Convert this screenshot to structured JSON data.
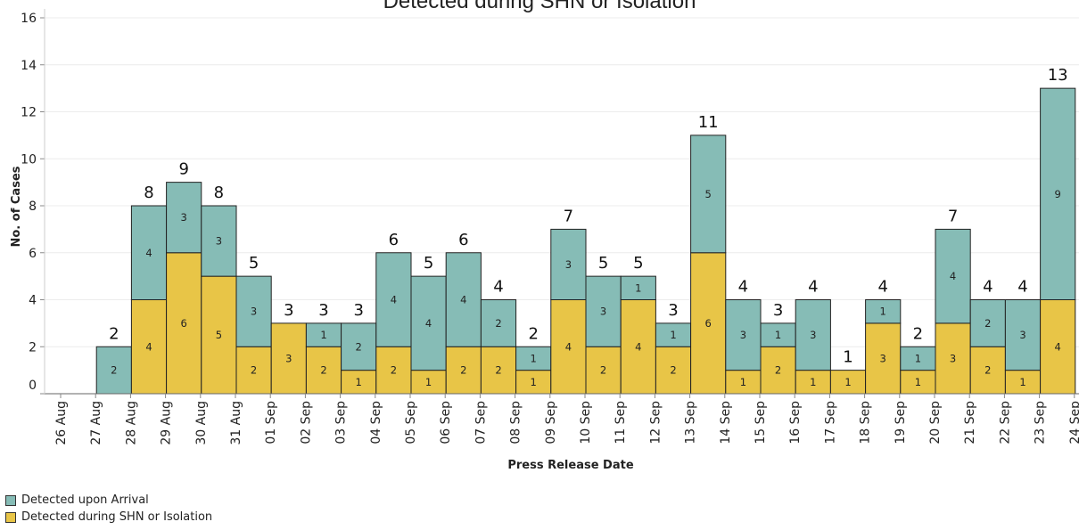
{
  "chart_data": {
    "type": "bar",
    "stacked": true,
    "title": "Detected during SHN or Isolation",
    "xlabel": "Press Release Date",
    "ylabel": "No. of Cases",
    "ylim": [
      0,
      16
    ],
    "yticks": [
      0,
      2,
      4,
      6,
      8,
      10,
      12,
      14,
      16
    ],
    "grid": true,
    "legend_position": "bottom-left",
    "categories": [
      "26 Aug",
      "27 Aug",
      "28 Aug",
      "29 Aug",
      "30 Aug",
      "31 Aug",
      "01 Sep",
      "02 Sep",
      "03 Sep",
      "04 Sep",
      "05 Sep",
      "06 Sep",
      "07 Sep",
      "08 Sep",
      "09 Sep",
      "10 Sep",
      "11 Sep",
      "12 Sep",
      "13 Sep",
      "14 Sep",
      "15 Sep",
      "16 Sep",
      "17 Sep",
      "18 Sep",
      "19 Sep",
      "20 Sep",
      "21 Sep",
      "22 Sep",
      "23 Sep",
      "24 Sep"
    ],
    "series": [
      {
        "name": "Detected during SHN or Isolation",
        "color": "#E8C547",
        "values": [
          null,
          0,
          4,
          6,
          5,
          2,
          3,
          2,
          1,
          2,
          1,
          2,
          2,
          1,
          4,
          2,
          4,
          2,
          6,
          1,
          2,
          1,
          1,
          3,
          1,
          3,
          2,
          1,
          4,
          null
        ]
      },
      {
        "name": "Detected upon Arrival",
        "color": "#86BCB6",
        "values": [
          null,
          2,
          4,
          3,
          3,
          3,
          0,
          1,
          2,
          4,
          4,
          4,
          2,
          1,
          3,
          3,
          1,
          1,
          5,
          3,
          1,
          3,
          0,
          1,
          1,
          4,
          2,
          3,
          9,
          null
        ]
      }
    ],
    "totals": [
      null,
      2,
      8,
      9,
      8,
      5,
      3,
      3,
      3,
      6,
      5,
      6,
      4,
      2,
      7,
      5,
      5,
      3,
      11,
      4,
      3,
      4,
      1,
      4,
      2,
      7,
      4,
      4,
      13,
      null
    ]
  }
}
